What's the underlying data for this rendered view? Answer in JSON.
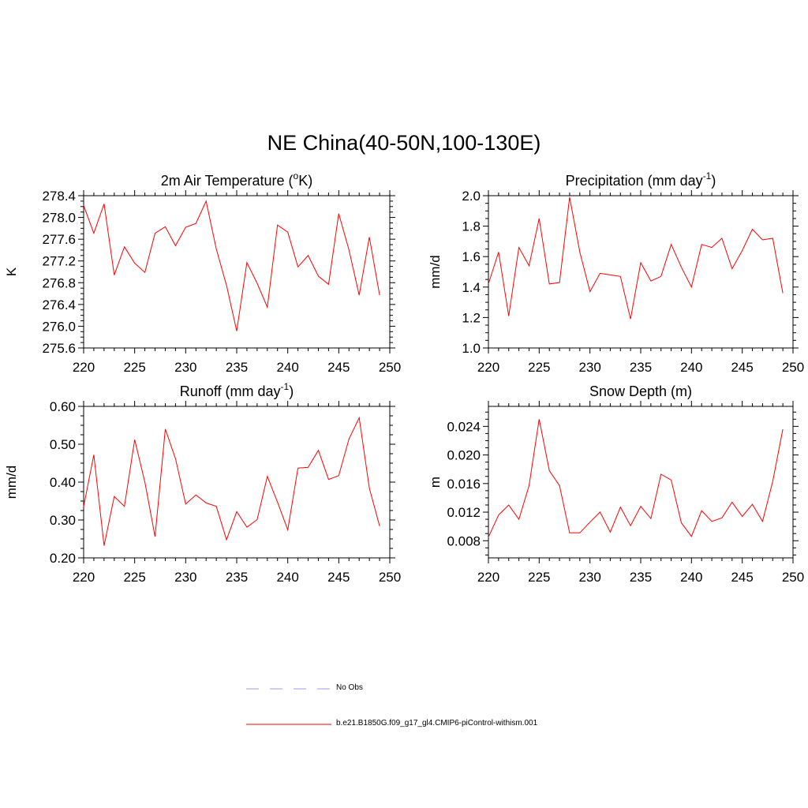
{
  "title": "NE China(40-50N,100-130E)",
  "colors": {
    "model_line": "#ff0000",
    "obs_line": "#9999ff",
    "axes": "#000000"
  },
  "legend": {
    "obs_label": "No Obs",
    "model_label": "b.e21.B1850G.f09_g17_gl4.CMIP6-piControl-withism.001"
  },
  "chart_data": [
    {
      "type": "line",
      "title": "2m Air Temperature (°K)",
      "title_base": "2m Air Temperature (",
      "title_sup": "o",
      "title_tail": "K)",
      "ylabel": "K",
      "xlim": [
        220,
        250
      ],
      "ylim": [
        275.6,
        278.4
      ],
      "xticks": [
        220,
        225,
        230,
        235,
        240,
        245,
        250
      ],
      "xtick_labels": [
        "220",
        "225",
        "230",
        "235",
        "240",
        "245",
        "250"
      ],
      "yticks": [
        275.6,
        276.0,
        276.4,
        276.8,
        277.2,
        277.6,
        278.0,
        278.4
      ],
      "ytick_labels": [
        "275.6",
        "276.0",
        "276.4",
        "276.8",
        "277.2",
        "277.6",
        "278.0",
        "278.4"
      ],
      "x": [
        220,
        221,
        222,
        223,
        224,
        225,
        226,
        227,
        228,
        229,
        230,
        231,
        232,
        233,
        234,
        235,
        236,
        237,
        238,
        239,
        240,
        241,
        242,
        243,
        244,
        245,
        246,
        247,
        248,
        249
      ],
      "series": [
        {
          "values": [
            278.22,
            277.71,
            278.25,
            276.94,
            277.46,
            277.16,
            276.99,
            277.71,
            277.83,
            277.48,
            277.82,
            277.89,
            278.3,
            277.42,
            276.75,
            275.91,
            277.17,
            276.79,
            276.35,
            277.86,
            277.73,
            277.09,
            277.3,
            276.92,
            276.77,
            278.07,
            277.4,
            276.57,
            277.64,
            276.57
          ]
        }
      ]
    },
    {
      "type": "line",
      "title": "Precipitation (mm day-1)",
      "title_base": "Precipitation (mm day",
      "title_sup": "-1",
      "title_tail": ")",
      "ylabel": "mm/d",
      "xlim": [
        220,
        250
      ],
      "ylim": [
        1.0,
        2.0
      ],
      "xticks": [
        220,
        225,
        230,
        235,
        240,
        245,
        250
      ],
      "xtick_labels": [
        "220",
        "225",
        "230",
        "235",
        "240",
        "245",
        "250"
      ],
      "yticks": [
        1.0,
        1.2,
        1.4,
        1.6,
        1.8,
        2.0
      ],
      "ytick_labels": [
        "1.0",
        "1.2",
        "1.4",
        "1.6",
        "1.8",
        "2.0"
      ],
      "x": [
        220,
        221,
        222,
        223,
        224,
        225,
        226,
        227,
        228,
        229,
        230,
        231,
        232,
        233,
        234,
        235,
        236,
        237,
        238,
        239,
        240,
        241,
        242,
        243,
        244,
        245,
        246,
        247,
        248,
        249
      ],
      "series": [
        {
          "values": [
            1.42,
            1.63,
            1.21,
            1.66,
            1.54,
            1.85,
            1.42,
            1.43,
            1.99,
            1.63,
            1.37,
            1.49,
            1.48,
            1.47,
            1.19,
            1.56,
            1.44,
            1.47,
            1.68,
            1.53,
            1.4,
            1.68,
            1.66,
            1.72,
            1.52,
            1.64,
            1.78,
            1.71,
            1.72,
            1.36
          ]
        }
      ]
    },
    {
      "type": "line",
      "title": "Runoff (mm day-1)",
      "title_base": "Runoff (mm day",
      "title_sup": "-1",
      "title_tail": ")",
      "ylabel": "mm/d",
      "xlim": [
        220,
        250
      ],
      "ylim": [
        0.2,
        0.6
      ],
      "xticks": [
        220,
        225,
        230,
        235,
        240,
        245,
        250
      ],
      "xtick_labels": [
        "220",
        "225",
        "230",
        "235",
        "240",
        "245",
        "250"
      ],
      "yticks": [
        0.2,
        0.3,
        0.4,
        0.5,
        0.6
      ],
      "ytick_labels": [
        "0.20",
        "0.30",
        "0.40",
        "0.50",
        "0.60"
      ],
      "x": [
        220,
        221,
        222,
        223,
        224,
        225,
        226,
        227,
        228,
        229,
        230,
        231,
        232,
        233,
        234,
        235,
        236,
        237,
        238,
        239,
        240,
        241,
        242,
        243,
        244,
        245,
        246,
        247,
        248,
        249
      ],
      "series": [
        {
          "values": [
            0.335,
            0.472,
            0.232,
            0.362,
            0.336,
            0.512,
            0.4,
            0.256,
            0.54,
            0.462,
            0.342,
            0.366,
            0.345,
            0.336,
            0.248,
            0.322,
            0.281,
            0.301,
            0.415,
            0.347,
            0.274,
            0.437,
            0.439,
            0.484,
            0.407,
            0.417,
            0.514,
            0.57,
            0.384,
            0.284
          ]
        }
      ]
    },
    {
      "type": "line",
      "title": "Snow Depth (m)",
      "title_base": "Snow Depth (m)",
      "title_sup": "",
      "title_tail": "",
      "ylabel": "m",
      "xlim": [
        220,
        250
      ],
      "ylim": [
        0.0056,
        0.0268
      ],
      "xticks": [
        220,
        225,
        230,
        235,
        240,
        245,
        250
      ],
      "xtick_labels": [
        "220",
        "225",
        "230",
        "235",
        "240",
        "245",
        "250"
      ],
      "yticks": [
        0.008,
        0.012,
        0.016,
        0.02,
        0.024
      ],
      "ytick_labels": [
        "0.008",
        "0.012",
        "0.016",
        "0.020",
        "0.024"
      ],
      "x": [
        220,
        221,
        222,
        223,
        224,
        225,
        226,
        227,
        228,
        229,
        230,
        231,
        232,
        233,
        234,
        235,
        236,
        237,
        238,
        239,
        240,
        241,
        242,
        243,
        244,
        245,
        246,
        247,
        248,
        249
      ],
      "series": [
        {
          "values": [
            0.0085,
            0.0116,
            0.013,
            0.011,
            0.0157,
            0.025,
            0.0178,
            0.0157,
            0.0091,
            0.0091,
            0.0106,
            0.012,
            0.0092,
            0.0127,
            0.0101,
            0.0128,
            0.0111,
            0.0173,
            0.0165,
            0.0105,
            0.0086,
            0.0122,
            0.0107,
            0.0112,
            0.0134,
            0.0114,
            0.0131,
            0.0107,
            0.0163,
            0.0236
          ]
        }
      ]
    }
  ]
}
